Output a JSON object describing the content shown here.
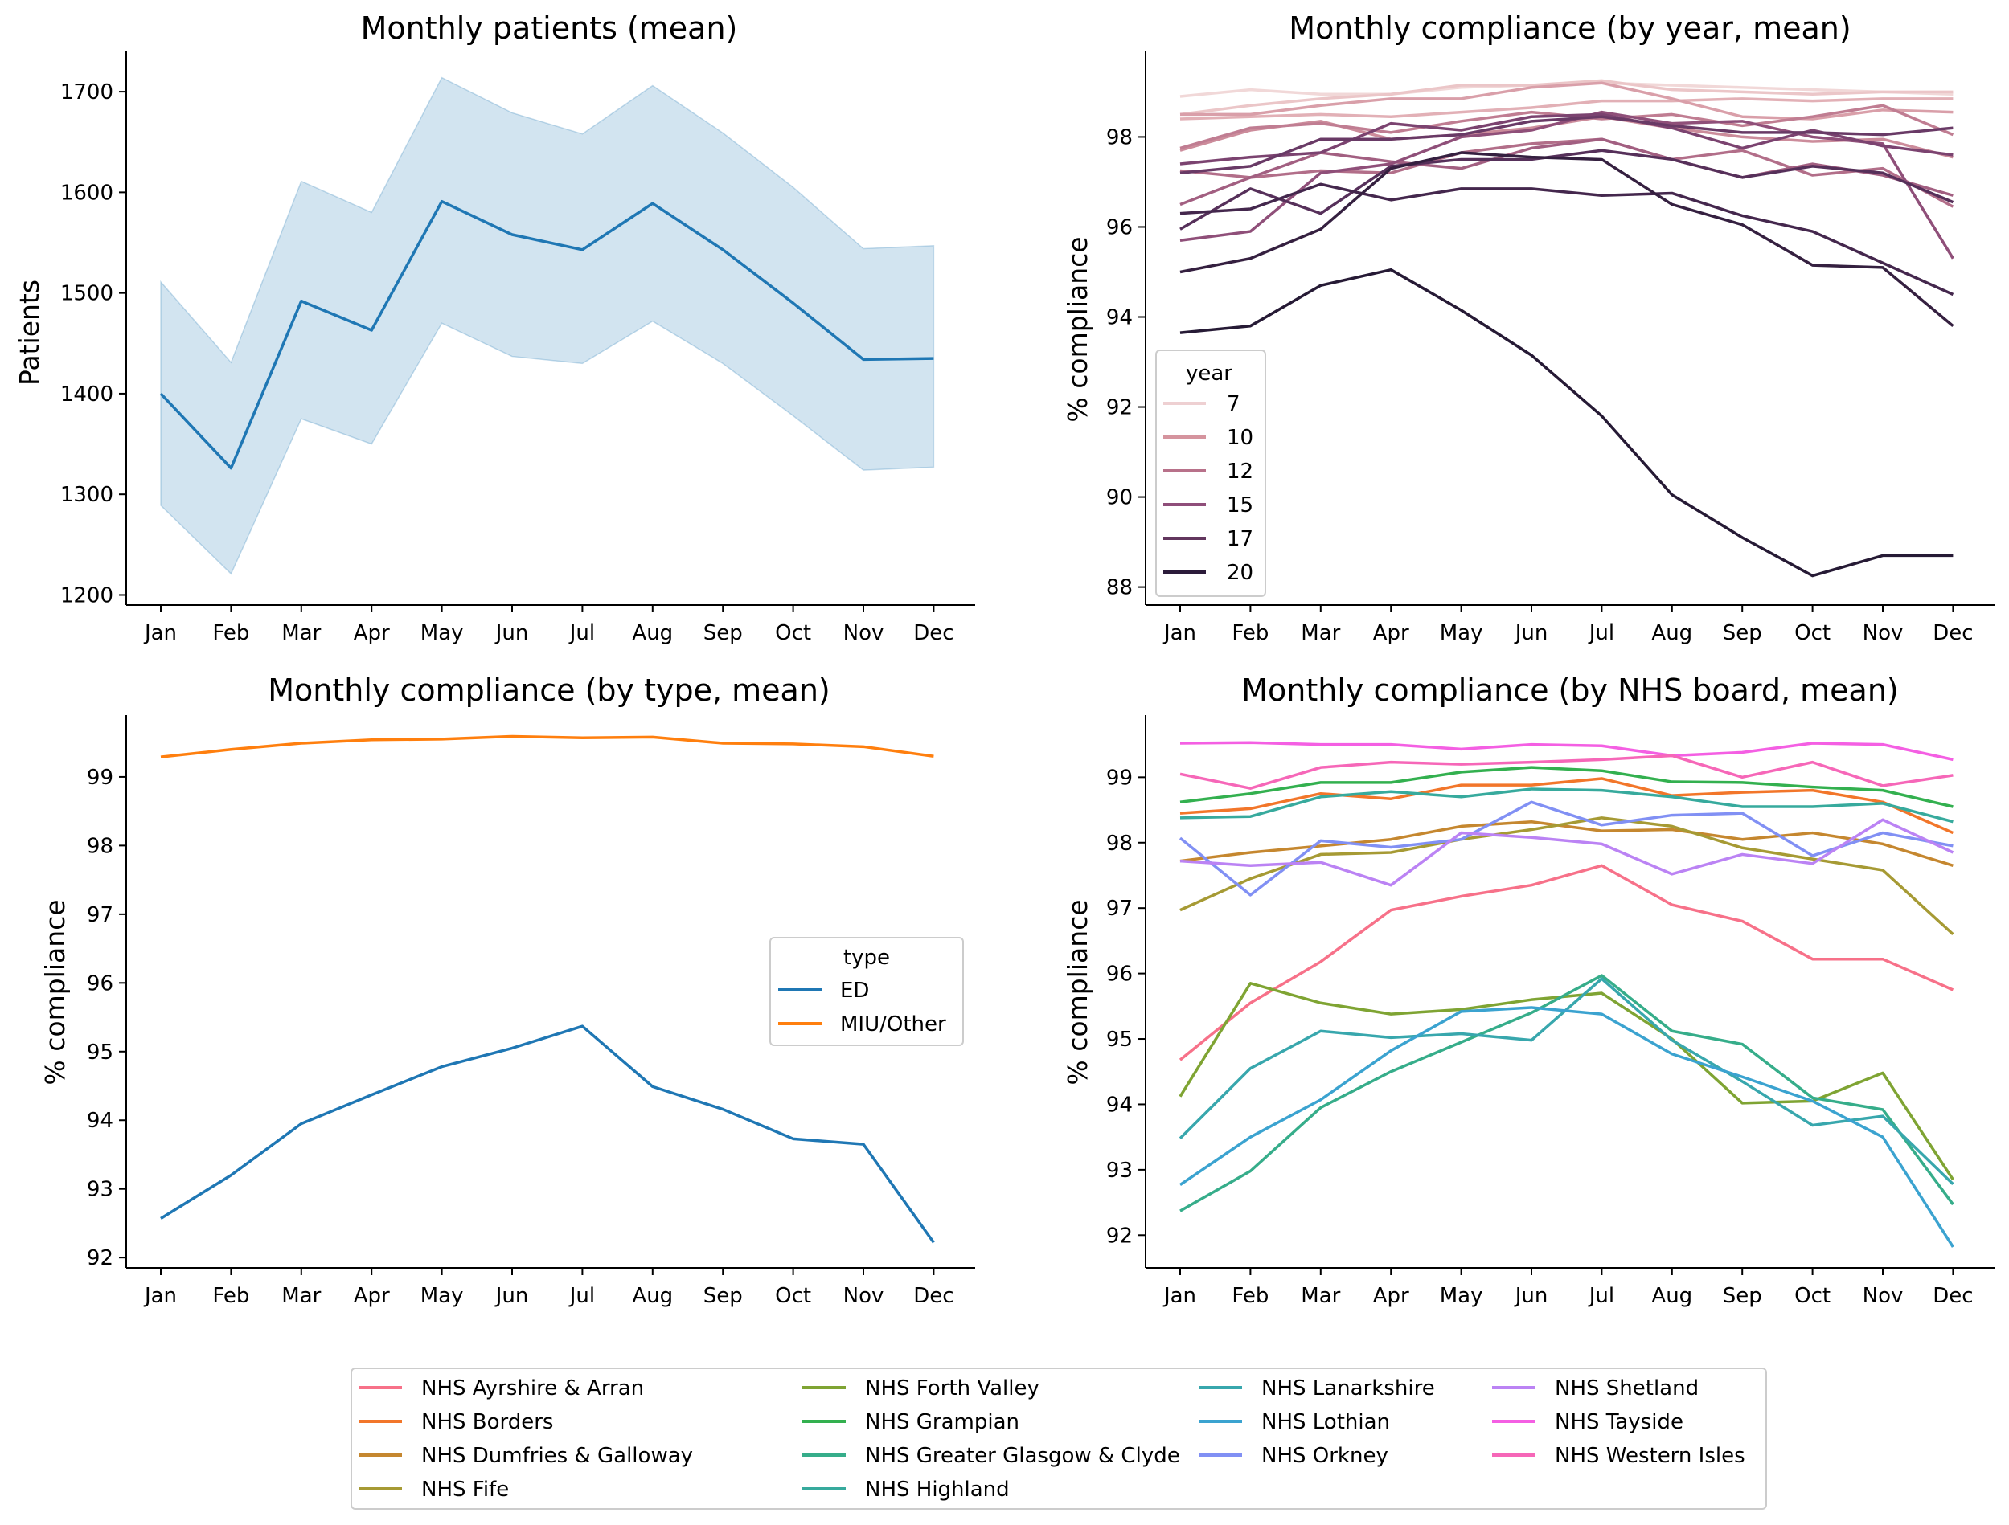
{
  "months": [
    "Jan",
    "Feb",
    "Mar",
    "Apr",
    "May",
    "Jun",
    "Jul",
    "Aug",
    "Sep",
    "Oct",
    "Nov",
    "Dec"
  ],
  "chart_data": [
    {
      "type": "area",
      "title": "Monthly patients (mean)",
      "xlabel": "",
      "ylabel": "Patients",
      "ylim": [
        1190,
        1740
      ],
      "yticks": [
        1200,
        1300,
        1400,
        1500,
        1600,
        1700
      ],
      "categories": [
        "Jan",
        "Feb",
        "Mar",
        "Apr",
        "May",
        "Jun",
        "Jul",
        "Aug",
        "Sep",
        "Oct",
        "Nov",
        "Dec"
      ],
      "series": [
        {
          "color": "#1f77b4",
          "values": [
            1400,
            1326,
            1492,
            1463,
            1591,
            1558,
            1543,
            1589,
            1543,
            1490,
            1434,
            1435
          ],
          "lower": [
            1289,
            1221,
            1375,
            1350,
            1470,
            1437,
            1430,
            1472,
            1430,
            1378,
            1324,
            1327
          ],
          "upper": [
            1511,
            1431,
            1611,
            1580,
            1714,
            1679,
            1658,
            1706,
            1659,
            1605,
            1544,
            1547
          ]
        }
      ],
      "grid": false
    },
    {
      "type": "line",
      "title": "Monthly compliance (by year, mean)",
      "xlabel": "",
      "ylabel": "% compliance",
      "ylim": [
        87.6,
        99.9
      ],
      "yticks": [
        88,
        90,
        92,
        94,
        96,
        98
      ],
      "categories": [
        "Jan",
        "Feb",
        "Mar",
        "Apr",
        "May",
        "Jun",
        "Jul",
        "Aug",
        "Sep",
        "Oct",
        "Nov",
        "Dec"
      ],
      "legend": {
        "title": "year",
        "position": "lower-left",
        "entries": [
          {
            "label": "7",
            "color": "#eed0d2"
          },
          {
            "label": "10",
            "color": "#d5949e"
          },
          {
            "label": "12",
            "color": "#b8718a"
          },
          {
            "label": "15",
            "color": "#8f4e7a"
          },
          {
            "label": "17",
            "color": "#62365e"
          },
          {
            "label": "20",
            "color": "#2b1b3a"
          }
        ]
      },
      "series": [
        {
          "color": "#f1d8d8",
          "values": [
            98.9,
            99.05,
            98.95,
            98.95,
            99.1,
            99.15,
            99.2,
            99.15,
            99.1,
            99.05,
            99.0,
            98.95
          ]
        },
        {
          "color": "#ebc6c8",
          "values": [
            98.5,
            98.7,
            98.85,
            98.95,
            99.15,
            99.15,
            99.25,
            99.05,
            99.0,
            98.95,
            99.0,
            99.0
          ]
        },
        {
          "color": "#e2b0b6",
          "values": [
            98.4,
            98.45,
            98.5,
            98.45,
            98.55,
            98.65,
            98.8,
            98.8,
            98.85,
            98.8,
            98.85,
            98.85
          ]
        },
        {
          "color": "#d99fa9",
          "values": [
            98.5,
            98.5,
            98.7,
            98.85,
            98.85,
            99.1,
            99.2,
            98.85,
            98.45,
            98.4,
            98.6,
            98.55
          ]
        },
        {
          "color": "#cc8c9b",
          "values": [
            97.7,
            98.15,
            98.35,
            97.95,
            98.05,
            98.2,
            98.45,
            98.2,
            98.0,
            97.9,
            97.95,
            97.55
          ]
        },
        {
          "color": "#c07d92",
          "values": [
            97.75,
            98.2,
            98.3,
            98.1,
            98.35,
            98.55,
            98.4,
            98.5,
            98.25,
            98.45,
            98.7,
            98.05
          ]
        },
        {
          "color": "#b26e89",
          "values": [
            97.25,
            97.1,
            97.25,
            97.2,
            97.65,
            97.85,
            97.95,
            97.5,
            97.7,
            97.15,
            97.3,
            96.45
          ]
        },
        {
          "color": "#a25f81",
          "values": [
            96.5,
            97.1,
            97.65,
            97.45,
            97.3,
            97.75,
            97.95,
            97.5,
            97.1,
            97.4,
            97.15,
            96.7
          ]
        },
        {
          "color": "#8f4f79",
          "values": [
            95.7,
            95.9,
            97.2,
            97.4,
            98.0,
            98.15,
            98.55,
            98.3,
            98.35,
            98.0,
            97.85,
            95.3
          ]
        },
        {
          "color": "#7b4370",
          "values": [
            97.4,
            97.55,
            97.65,
            98.3,
            98.15,
            98.45,
            98.5,
            98.2,
            97.75,
            98.15,
            97.8,
            97.6
          ]
        },
        {
          "color": "#693a66",
          "values": [
            97.2,
            97.35,
            97.95,
            97.95,
            98.05,
            98.35,
            98.45,
            98.25,
            98.1,
            98.1,
            98.05,
            98.2
          ]
        },
        {
          "color": "#56305a",
          "values": [
            95.95,
            96.85,
            96.3,
            97.35,
            97.5,
            97.5,
            97.7,
            97.5,
            97.1,
            97.35,
            97.2,
            96.55
          ]
        },
        {
          "color": "#44274d",
          "values": [
            96.3,
            96.4,
            96.95,
            96.6,
            96.85,
            96.85,
            96.7,
            96.75,
            96.25,
            95.9,
            95.2,
            94.5
          ]
        },
        {
          "color": "#352040",
          "values": [
            95.0,
            95.3,
            95.95,
            97.3,
            97.65,
            97.55,
            97.5,
            96.5,
            96.05,
            95.15,
            95.1,
            93.8
          ]
        },
        {
          "color": "#261a35",
          "values": [
            93.65,
            93.8,
            94.7,
            95.05,
            94.15,
            93.15,
            91.8,
            90.05,
            89.1,
            88.25,
            88.7,
            88.7
          ]
        }
      ],
      "grid": false
    },
    {
      "type": "line",
      "title": "Monthly compliance (by type, mean)",
      "xlabel": "",
      "ylabel": "% compliance",
      "ylim": [
        91.85,
        99.9
      ],
      "yticks": [
        92,
        93,
        94,
        95,
        96,
        97,
        98,
        99
      ],
      "categories": [
        "Jan",
        "Feb",
        "Mar",
        "Apr",
        "May",
        "Jun",
        "Jul",
        "Aug",
        "Sep",
        "Oct",
        "Nov",
        "Dec"
      ],
      "legend": {
        "title": "type",
        "position": "center-right",
        "entries": [
          {
            "label": "ED",
            "color": "#1f77b4"
          },
          {
            "label": "MIU/Other",
            "color": "#ff7f0e"
          }
        ]
      },
      "series": [
        {
          "name": "ED",
          "color": "#1f77b4",
          "values": [
            92.57,
            93.2,
            93.95,
            94.37,
            94.78,
            95.05,
            95.37,
            94.49,
            94.16,
            93.73,
            93.65,
            92.22
          ]
        },
        {
          "name": "MIU/Other",
          "color": "#ff7f0e",
          "values": [
            99.29,
            99.4,
            99.49,
            99.54,
            99.55,
            99.59,
            99.57,
            99.58,
            99.49,
            99.48,
            99.44,
            99.3
          ]
        }
      ],
      "grid": false
    },
    {
      "type": "line",
      "title": "Monthly compliance (by NHS board, mean)",
      "xlabel": "",
      "ylabel": "% compliance",
      "ylim": [
        91.5,
        99.95
      ],
      "yticks": [
        92,
        93,
        94,
        95,
        96,
        97,
        98,
        99
      ],
      "categories": [
        "Jan",
        "Feb",
        "Mar",
        "Apr",
        "May",
        "Jun",
        "Jul",
        "Aug",
        "Sep",
        "Oct",
        "Nov",
        "Dec"
      ],
      "legend": {
        "position": "bottom",
        "ncol": 4,
        "entries": [
          {
            "label": "NHS Ayrshire & Arran",
            "color": "#f77189"
          },
          {
            "label": "NHS Borders",
            "color": "#f2762a"
          },
          {
            "label": "NHS Dumfries & Galloway",
            "color": "#c5872f"
          },
          {
            "label": "NHS Fife",
            "color": "#a69a34"
          },
          {
            "label": "NHS Forth Valley",
            "color": "#7fa433"
          },
          {
            "label": "NHS Grampian",
            "color": "#33b04f"
          },
          {
            "label": "NHS Greater Glasgow & Clyde",
            "color": "#36ad8a"
          },
          {
            "label": "NHS Highland",
            "color": "#37aa9d"
          },
          {
            "label": "NHS Lanarkshire",
            "color": "#38a7ad"
          },
          {
            "label": "NHS Lothian",
            "color": "#3ba3d0"
          },
          {
            "label": "NHS Orkney",
            "color": "#8190f4"
          },
          {
            "label": "NHS Shetland",
            "color": "#bb83f4"
          },
          {
            "label": "NHS Tayside",
            "color": "#f45fe3"
          },
          {
            "label": "NHS Western Isles",
            "color": "#f667b8"
          }
        ]
      },
      "series": [
        {
          "name": "NHS Ayrshire & Arran",
          "color": "#f77189",
          "values": [
            94.68,
            95.55,
            96.18,
            96.97,
            97.18,
            97.35,
            97.65,
            97.05,
            96.8,
            96.22,
            96.22,
            95.75
          ]
        },
        {
          "name": "NHS Borders",
          "color": "#f2762a",
          "values": [
            98.45,
            98.52,
            98.75,
            98.67,
            98.88,
            98.88,
            98.98,
            98.72,
            98.77,
            98.8,
            98.62,
            98.15
          ]
        },
        {
          "name": "NHS Dumfries & Galloway",
          "color": "#c5872f",
          "values": [
            97.72,
            97.85,
            97.95,
            98.05,
            98.25,
            98.32,
            98.18,
            98.2,
            98.05,
            98.15,
            97.98,
            97.65
          ]
        },
        {
          "name": "NHS Fife",
          "color": "#a69a34",
          "values": [
            96.97,
            97.45,
            97.82,
            97.85,
            98.05,
            98.2,
            98.38,
            98.25,
            97.92,
            97.75,
            97.58,
            96.6
          ]
        },
        {
          "name": "NHS Forth Valley",
          "color": "#7fa433",
          "values": [
            94.12,
            95.85,
            95.55,
            95.38,
            95.45,
            95.6,
            95.7,
            95.0,
            94.02,
            94.05,
            94.48,
            92.85
          ]
        },
        {
          "name": "NHS Grampian",
          "color": "#33b04f",
          "values": [
            98.62,
            98.75,
            98.92,
            98.92,
            99.08,
            99.15,
            99.1,
            98.93,
            98.92,
            98.85,
            98.8,
            98.55
          ]
        },
        {
          "name": "NHS Greater Glasgow & Clyde",
          "color": "#36ad8a",
          "values": [
            92.37,
            92.98,
            93.95,
            94.5,
            94.95,
            95.4,
            95.97,
            95.12,
            94.92,
            94.1,
            93.92,
            92.47
          ]
        },
        {
          "name": "NHS Highland",
          "color": "#37aa9d",
          "values": [
            98.38,
            98.4,
            98.7,
            98.78,
            98.7,
            98.82,
            98.8,
            98.7,
            98.55,
            98.55,
            98.6,
            98.32
          ]
        },
        {
          "name": "NHS Lanarkshire",
          "color": "#38a7ad",
          "values": [
            93.48,
            94.55,
            95.12,
            95.02,
            95.08,
            94.98,
            95.92,
            94.98,
            94.35,
            93.68,
            93.82,
            92.78
          ]
        },
        {
          "name": "NHS Lothian",
          "color": "#3ba3d0",
          "values": [
            92.77,
            93.5,
            94.07,
            94.82,
            95.42,
            95.48,
            95.38,
            94.77,
            94.42,
            94.05,
            93.5,
            91.82
          ]
        },
        {
          "name": "NHS Orkney",
          "color": "#8190f4",
          "values": [
            98.07,
            97.2,
            98.03,
            97.93,
            98.05,
            98.62,
            98.27,
            98.42,
            98.45,
            97.8,
            98.15,
            97.95
          ]
        },
        {
          "name": "NHS Shetland",
          "color": "#bb83f4",
          "values": [
            97.72,
            97.65,
            97.7,
            97.35,
            98.15,
            98.08,
            97.98,
            97.52,
            97.82,
            97.68,
            98.35,
            97.85
          ]
        },
        {
          "name": "NHS Tayside",
          "color": "#f45fe3",
          "values": [
            99.52,
            99.53,
            99.5,
            99.5,
            99.43,
            99.5,
            99.48,
            99.33,
            99.38,
            99.52,
            99.5,
            99.27
          ]
        },
        {
          "name": "NHS Western Isles",
          "color": "#f667b8",
          "values": [
            99.05,
            98.83,
            99.15,
            99.23,
            99.2,
            99.23,
            99.27,
            99.33,
            99.0,
            99.23,
            98.87,
            99.03
          ]
        }
      ],
      "grid": false
    }
  ]
}
